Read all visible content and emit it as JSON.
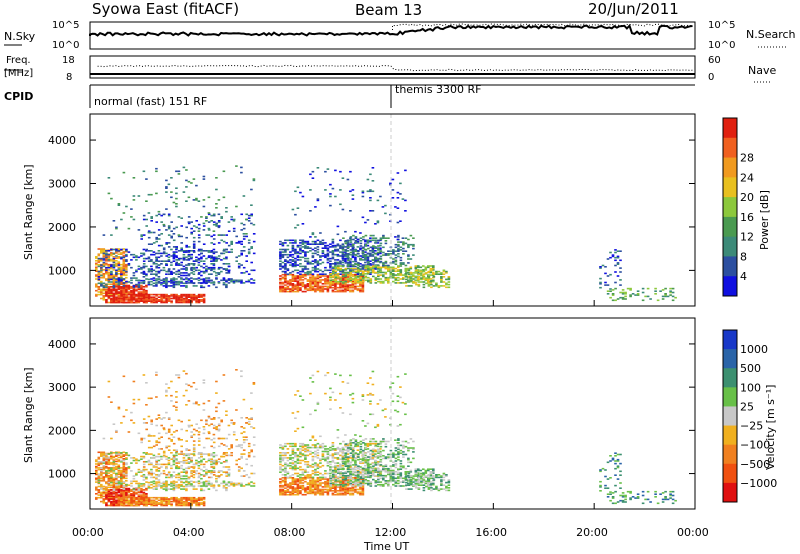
{
  "header": {
    "title": "Syowa East (fitACF)",
    "beam": "Beam 13",
    "date": "20/Jun/2011"
  },
  "noise_panel": {
    "left_label": "N.Sky",
    "right_label": "N.Search",
    "left_ticks": [
      "10^5",
      "10^0"
    ],
    "right_ticks": [
      "10^5",
      "10^0"
    ]
  },
  "freq_panel": {
    "left_label_1": "Freq.",
    "left_label_2": "[MHz]",
    "right_label": "Nave",
    "left_ticks": [
      "18",
      "8"
    ],
    "right_ticks": [
      "60",
      "0"
    ]
  },
  "cpid_panel": {
    "label": "CPID",
    "modes": [
      {
        "text": "normal (fast) 151 RF",
        "start_hour": 0
      },
      {
        "text": "themis 3300 RF",
        "start_hour": 12
      }
    ]
  },
  "chart_data": [
    {
      "type": "heatmap",
      "name": "power",
      "ylabel": "Slant Range [km]",
      "ylim": [
        180,
        4600
      ],
      "xlim": [
        0,
        24
      ],
      "yticks": [
        "1000",
        "2000",
        "3000",
        "4000"
      ],
      "colorbar_label": "Power [dB]",
      "colorbar_ticks": [
        "4",
        "8",
        "12",
        "16",
        "20",
        "24",
        "28"
      ],
      "colors": [
        "#1010e0",
        "#2c4fa0",
        "#3c8a78",
        "#4a9a50",
        "#8cc83c",
        "#e8c020",
        "#f09a20",
        "#f06020",
        "#e02010"
      ]
    },
    {
      "type": "heatmap",
      "name": "velocity",
      "ylabel": "Slant Range [km]",
      "ylim": [
        180,
        4600
      ],
      "xlim": [
        0,
        24
      ],
      "yticks": [
        "1000",
        "2000",
        "3000",
        "4000"
      ],
      "xlabel": "Time UT",
      "xticks": [
        "00:00",
        "04:00",
        "08:00",
        "12:00",
        "16:00",
        "20:00",
        "00:00"
      ],
      "colorbar_label": "Velocity [m s⁻¹]",
      "colorbar_ticks": [
        "1000",
        "500",
        "100",
        "25",
        "−25",
        "−100",
        "−500",
        "−1000"
      ],
      "colors": [
        "#1838c8",
        "#2a64a8",
        "#3c9070",
        "#68c048",
        "#c8c8c8",
        "#f0b020",
        "#f08020",
        "#f05010",
        "#e01010"
      ]
    }
  ]
}
